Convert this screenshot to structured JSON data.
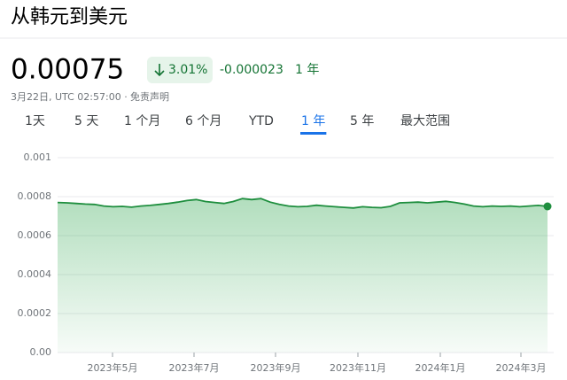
{
  "header": {
    "title": "从韩元到美元",
    "price": "0.00075",
    "change_pct": "3.01%",
    "change_abs": "-0.000023",
    "period": "1 年",
    "timestamp": "3月22日, UTC 02:57:00 ·",
    "disclaimer": "免责声明"
  },
  "tabs": {
    "items": [
      "1天",
      "5 天",
      "1 个月",
      "6 个月",
      "YTD",
      "1 年",
      "5 年",
      "最大范围"
    ],
    "selected": 5
  },
  "chart_data": {
    "type": "line",
    "series": [
      {
        "color": "#1e8e3e",
        "values": [
          0.00077,
          0.000768,
          0.000765,
          0.000762,
          0.00076,
          0.000752,
          0.000748,
          0.00075,
          0.000746,
          0.000752,
          0.000755,
          0.00076,
          0.000765,
          0.000772,
          0.00078,
          0.000785,
          0.000775,
          0.00077,
          0.000765,
          0.000775,
          0.00079,
          0.000785,
          0.00079,
          0.000772,
          0.00076,
          0.000752,
          0.000748,
          0.00075,
          0.000756,
          0.000752,
          0.000748,
          0.000745,
          0.000742,
          0.000748,
          0.000745,
          0.000743,
          0.00075,
          0.000768,
          0.00077,
          0.000772,
          0.000768,
          0.000772,
          0.000776,
          0.00077,
          0.000762,
          0.000752,
          0.000748,
          0.000752,
          0.00075,
          0.000752,
          0.000748,
          0.000752,
          0.000755,
          0.00075
        ]
      }
    ],
    "ylim": [
      0,
      0.001
    ],
    "yticks": [
      {
        "value": 0,
        "label": "0.00"
      },
      0.0002,
      0.0004,
      0.0006,
      0.0008,
      0.001
    ],
    "x_labels": [
      "2023年5月",
      "2023年7月",
      "2023年9月",
      "2023年11月",
      "2024年1月",
      "2024年3月"
    ],
    "grid": true
  }
}
